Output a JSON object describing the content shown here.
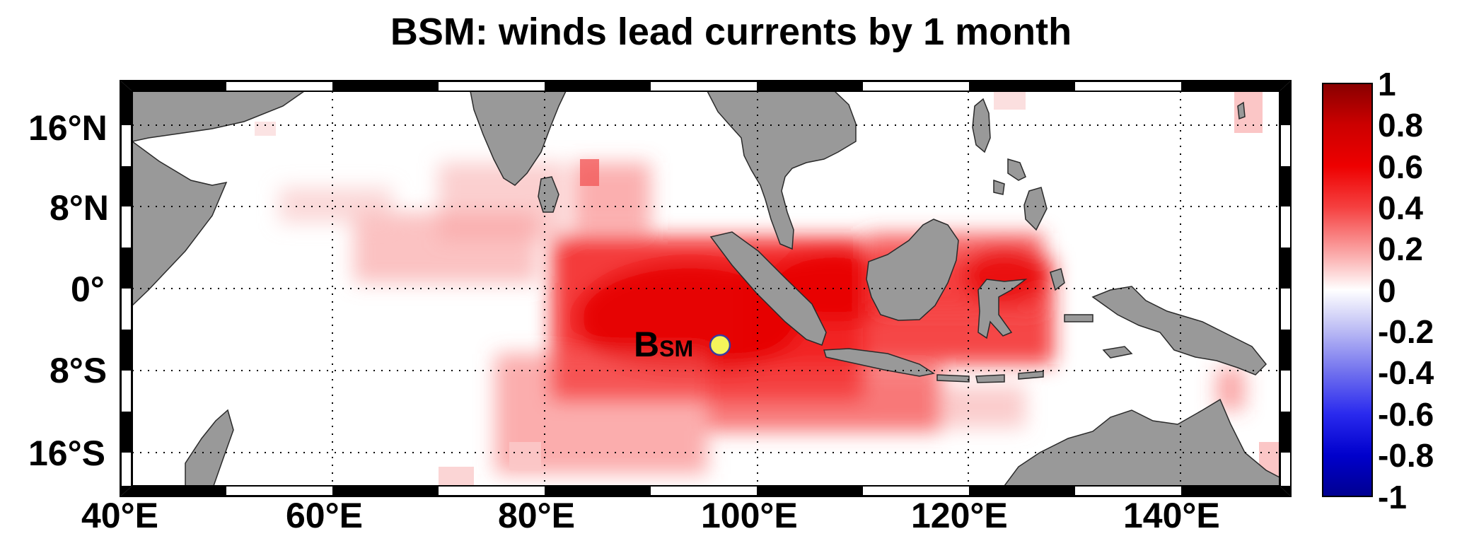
{
  "title": "BSM: winds lead currents by 1 month",
  "lat_labels": [
    "16°N",
    "8°N",
    "0°",
    "8°S",
    "16°S"
  ],
  "lon_labels": [
    "40°E",
    "60°E",
    "80°E",
    "100°E",
    "120°E",
    "140°E"
  ],
  "colorbar": {
    "ticks": [
      "1",
      "0.8",
      "0.6",
      "0.4",
      "0.2",
      "0",
      "-0.2",
      "-0.4",
      "-0.6",
      "-0.8",
      "-1"
    ],
    "range": [
      -1,
      1
    ],
    "colormap": "blue-white-red",
    "positive_color": "#ee0000",
    "negative_color": "#0000cc"
  },
  "station": {
    "label_main": "B",
    "label_sub": "SM",
    "lon": 96.5,
    "lat": -5.5,
    "color": "#f5f55a"
  },
  "map": {
    "lon_range": [
      40,
      149
    ],
    "lat_range": [
      -19,
      19
    ],
    "grid": true,
    "land_color": "#999999",
    "ocean_color": "#ffffff"
  }
}
